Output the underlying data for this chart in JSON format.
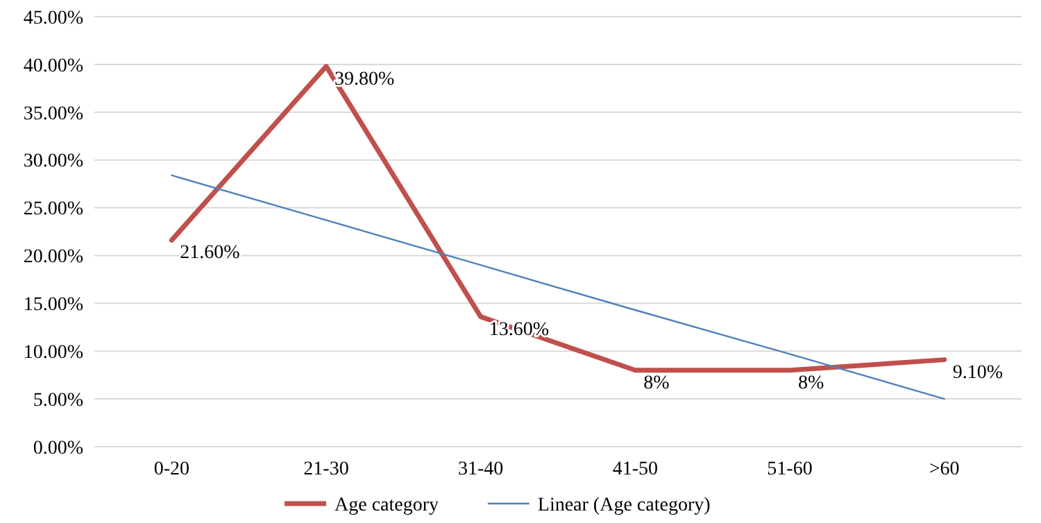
{
  "chart_data": {
    "type": "line",
    "categories": [
      "0-20",
      "21-30",
      "31-40",
      "41-50",
      "51-60",
      ">60"
    ],
    "series": [
      {
        "name": "Age category",
        "color": "#c0504d",
        "values": [
          21.6,
          39.8,
          13.6,
          8,
          8,
          9.1
        ],
        "value_labels": [
          "21.60%",
          "39.80%",
          "13.60%",
          "8%",
          "8%",
          "9.10%"
        ]
      },
      {
        "name": "Linear (Age category)",
        "color": "#4f81bd",
        "values": [
          28.4,
          23.7,
          19.0,
          14.3,
          9.7,
          5.0
        ]
      }
    ],
    "ylim": [
      0,
      45
    ],
    "yticks": [
      {
        "value": 0,
        "label": "0.00%"
      },
      {
        "value": 5,
        "label": "5.00%"
      },
      {
        "value": 10,
        "label": "10.00%"
      },
      {
        "value": 15,
        "label": "15.00%"
      },
      {
        "value": 20,
        "label": "20.00%"
      },
      {
        "value": 25,
        "label": "25.00%"
      },
      {
        "value": 30,
        "label": "30.00%"
      },
      {
        "value": 35,
        "label": "35.00%"
      },
      {
        "value": 40,
        "label": "40.00%"
      },
      {
        "value": 45,
        "label": "45.00%"
      }
    ],
    "grid": "y",
    "legend": "bottom",
    "marker": "none",
    "line_style": "solid"
  }
}
